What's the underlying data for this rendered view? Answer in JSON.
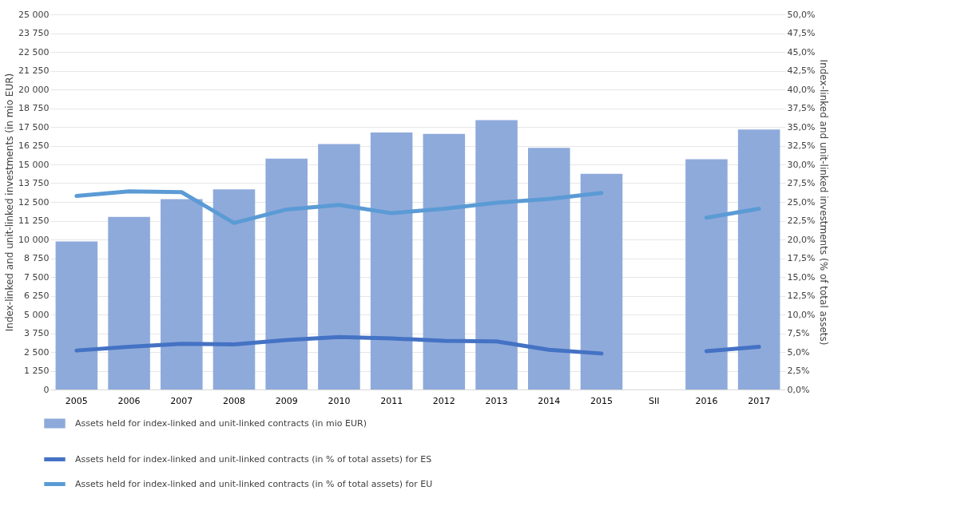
{
  "chart_data": {
    "type": "bar",
    "categories": [
      "2005",
      "2006",
      "2007",
      "2008",
      "2009",
      "2010",
      "2011",
      "2012",
      "2013",
      "2014",
      "2015",
      "SII",
      "2016",
      "2017"
    ],
    "ylabel": "Index-linked and unit-linked investments (in mio EUR)",
    "y2label": "Index-linked and unit-linked investments (% of total assets)",
    "series": [
      {
        "name": "Assets held for index-linked and unit-linked contracts (in mio EUR)",
        "color": "#8eaadb",
        "values": [
          9870,
          11500,
          12680,
          13340,
          15390,
          16360,
          17130,
          17030,
          17950,
          16100,
          14370,
          null,
          15340,
          17330
        ]
      },
      {
        "type": "line",
        "axis": "y2",
        "name": "Assets held for index-linked and unit-linked contracts (in % of total assets) for ES",
        "color": "#4472c4",
        "values": [
          5.2,
          5.7,
          6.1,
          6.0,
          6.6,
          7.0,
          6.8,
          6.5,
          6.4,
          5.3,
          4.8,
          null,
          5.1,
          5.7
        ]
      },
      {
        "type": "line",
        "axis": "y2",
        "name": "Assets held for index-linked and unit-linked contracts (in % of total assets) for EU",
        "color": "#5b9bd5",
        "values": [
          25.8,
          26.4,
          26.3,
          22.2,
          24.0,
          24.6,
          23.5,
          24.1,
          24.9,
          25.4,
          26.2,
          null,
          22.9,
          24.1
        ]
      }
    ],
    "ylim": [
      0,
      25000
    ],
    "yticks": [
      {
        "value": 0,
        "label": "0"
      },
      {
        "value": 1250,
        "label": "1 250"
      },
      {
        "value": 2500,
        "label": "2 500"
      },
      {
        "value": 3750,
        "label": "3 750"
      },
      {
        "value": 5000,
        "label": "5 000"
      },
      {
        "value": 6250,
        "label": "6 250"
      },
      {
        "value": 7500,
        "label": "7 500"
      },
      {
        "value": 8750,
        "label": "8 750"
      },
      {
        "value": 10000,
        "label": "10 000"
      },
      {
        "value": 11250,
        "label": "11 250"
      },
      {
        "value": 12500,
        "label": "12 500"
      },
      {
        "value": 13750,
        "label": "13 750"
      },
      {
        "value": 15000,
        "label": "15 000"
      },
      {
        "value": 16250,
        "label": "16 250"
      },
      {
        "value": 17500,
        "label": "17 500"
      },
      {
        "value": 18750,
        "label": "18 750"
      },
      {
        "value": 20000,
        "label": "20 000"
      },
      {
        "value": 21250,
        "label": "21 250"
      },
      {
        "value": 22500,
        "label": "22 500"
      },
      {
        "value": 23750,
        "label": "23 750"
      },
      {
        "value": 25000,
        "label": "25 000"
      }
    ],
    "y2lim": [
      0,
      50
    ],
    "y2ticks": [
      {
        "value": 0,
        "label": "0,0%"
      },
      {
        "value": 2.5,
        "label": "2,5%"
      },
      {
        "value": 5,
        "label": "5,0%"
      },
      {
        "value": 7.5,
        "label": "7,5%"
      },
      {
        "value": 10,
        "label": "10,0%"
      },
      {
        "value": 12.5,
        "label": "12,5%"
      },
      {
        "value": 15,
        "label": "15,0%"
      },
      {
        "value": 17.5,
        "label": "17,5%"
      },
      {
        "value": 20,
        "label": "20,0%"
      },
      {
        "value": 22.5,
        "label": "22,5%"
      },
      {
        "value": 25,
        "label": "25,0%"
      },
      {
        "value": 27.5,
        "label": "27,5%"
      },
      {
        "value": 30,
        "label": "30,0%"
      },
      {
        "value": 32.5,
        "label": "32,5%"
      },
      {
        "value": 35,
        "label": "35,0%"
      },
      {
        "value": 37.5,
        "label": "37,5%"
      },
      {
        "value": 40,
        "label": "40,0%"
      },
      {
        "value": 42.5,
        "label": "42,5%"
      },
      {
        "value": 45,
        "label": "45,0%"
      },
      {
        "value": 47.5,
        "label": "47,5%"
      },
      {
        "value": 50,
        "label": "50,0%"
      }
    ],
    "grid": "y",
    "legend": "bottom"
  }
}
